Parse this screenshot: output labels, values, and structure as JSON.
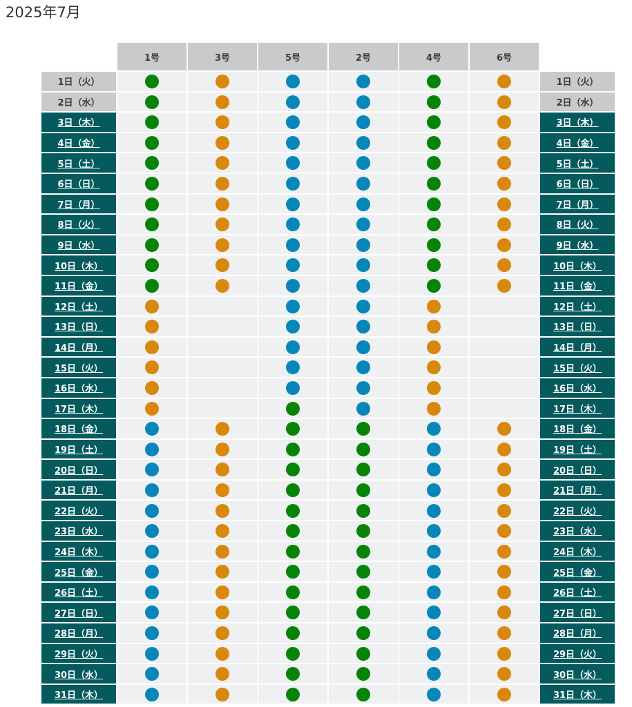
{
  "page": {
    "title": "2025年7月"
  },
  "colors": {
    "green": "#078407",
    "orange": "#d9880e",
    "blue": "#0786ba",
    "day_link_bg": "#045a5c",
    "header_bg": "#c8cacb"
  },
  "columns": [
    "1号",
    "3号",
    "5号",
    "2号",
    "4号",
    "6号"
  ],
  "rows": [
    {
      "label": "1日（火）",
      "link": false,
      "marks": [
        "g",
        "o",
        "b",
        "b",
        "g",
        "o"
      ]
    },
    {
      "label": "2日（水）",
      "link": false,
      "marks": [
        "g",
        "o",
        "b",
        "b",
        "g",
        "o"
      ]
    },
    {
      "label": "3日（木）",
      "link": true,
      "marks": [
        "g",
        "o",
        "b",
        "b",
        "g",
        "o"
      ]
    },
    {
      "label": "4日（金）",
      "link": true,
      "marks": [
        "g",
        "o",
        "b",
        "b",
        "g",
        "o"
      ]
    },
    {
      "label": "5日（土）",
      "link": true,
      "marks": [
        "g",
        "o",
        "b",
        "b",
        "g",
        "o"
      ]
    },
    {
      "label": "6日（日）",
      "link": true,
      "marks": [
        "g",
        "o",
        "b",
        "b",
        "g",
        "o"
      ]
    },
    {
      "label": "7日（月）",
      "link": true,
      "marks": [
        "g",
        "o",
        "b",
        "b",
        "g",
        "o"
      ]
    },
    {
      "label": "8日（火）",
      "link": true,
      "marks": [
        "g",
        "o",
        "b",
        "b",
        "g",
        "o"
      ]
    },
    {
      "label": "9日（水）",
      "link": true,
      "marks": [
        "g",
        "o",
        "b",
        "b",
        "g",
        "o"
      ]
    },
    {
      "label": "10日（木）",
      "link": true,
      "marks": [
        "g",
        "o",
        "b",
        "b",
        "g",
        "o"
      ]
    },
    {
      "label": "11日（金）",
      "link": true,
      "marks": [
        "g",
        "o",
        "b",
        "b",
        "g",
        "o"
      ]
    },
    {
      "label": "12日（土）",
      "link": true,
      "marks": [
        "o",
        "",
        "b",
        "b",
        "o",
        ""
      ]
    },
    {
      "label": "13日（日）",
      "link": true,
      "marks": [
        "o",
        "",
        "b",
        "b",
        "o",
        ""
      ]
    },
    {
      "label": "14日（月）",
      "link": true,
      "marks": [
        "o",
        "",
        "b",
        "b",
        "o",
        ""
      ]
    },
    {
      "label": "15日（火）",
      "link": true,
      "marks": [
        "o",
        "",
        "b",
        "b",
        "o",
        ""
      ]
    },
    {
      "label": "16日（水）",
      "link": true,
      "marks": [
        "o",
        "",
        "b",
        "b",
        "o",
        ""
      ]
    },
    {
      "label": "17日（木）",
      "link": true,
      "marks": [
        "o",
        "",
        "g",
        "b",
        "o",
        ""
      ]
    },
    {
      "label": "18日（金）",
      "link": true,
      "marks": [
        "b",
        "o",
        "g",
        "g",
        "b",
        "o"
      ]
    },
    {
      "label": "19日（土）",
      "link": true,
      "marks": [
        "b",
        "o",
        "g",
        "g",
        "b",
        "o"
      ]
    },
    {
      "label": "20日（日）",
      "link": true,
      "marks": [
        "b",
        "o",
        "g",
        "g",
        "b",
        "o"
      ]
    },
    {
      "label": "21日（月）",
      "link": true,
      "marks": [
        "b",
        "o",
        "g",
        "g",
        "b",
        "o"
      ]
    },
    {
      "label": "22日（火）",
      "link": true,
      "marks": [
        "b",
        "o",
        "g",
        "g",
        "b",
        "o"
      ]
    },
    {
      "label": "23日（水）",
      "link": true,
      "marks": [
        "b",
        "o",
        "g",
        "g",
        "b",
        "o"
      ]
    },
    {
      "label": "24日（木）",
      "link": true,
      "marks": [
        "b",
        "o",
        "g",
        "g",
        "b",
        "o"
      ]
    },
    {
      "label": "25日（金）",
      "link": true,
      "marks": [
        "b",
        "o",
        "g",
        "g",
        "b",
        "o"
      ]
    },
    {
      "label": "26日（土）",
      "link": true,
      "marks": [
        "b",
        "o",
        "g",
        "g",
        "b",
        "o"
      ]
    },
    {
      "label": "27日（日）",
      "link": true,
      "marks": [
        "b",
        "o",
        "g",
        "g",
        "b",
        "o"
      ]
    },
    {
      "label": "28日（月）",
      "link": true,
      "marks": [
        "b",
        "o",
        "g",
        "g",
        "b",
        "o"
      ]
    },
    {
      "label": "29日（火）",
      "link": true,
      "marks": [
        "b",
        "o",
        "g",
        "g",
        "b",
        "o"
      ]
    },
    {
      "label": "30日（水）",
      "link": true,
      "marks": [
        "b",
        "o",
        "g",
        "g",
        "b",
        "o"
      ]
    },
    {
      "label": "31日（木）",
      "link": true,
      "marks": [
        "b",
        "o",
        "g",
        "g",
        "b",
        "o"
      ]
    }
  ]
}
